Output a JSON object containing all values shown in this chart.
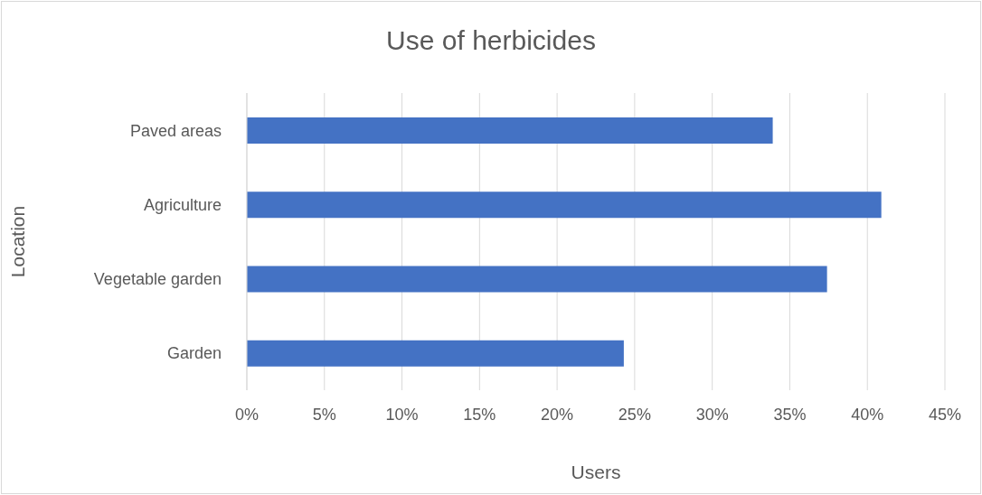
{
  "chart_data": {
    "type": "bar",
    "orientation": "horizontal",
    "title": "Use of herbicides",
    "xlabel": "Users",
    "ylabel": "Location",
    "categories": [
      "Paved areas",
      "Agriculture",
      "Vegetable garden",
      "Garden"
    ],
    "values": [
      33.9,
      40.9,
      37.4,
      24.3
    ],
    "color": "#4472c4",
    "xlim": [
      0,
      45
    ],
    "xticks": [
      {
        "value": 0,
        "label": "0%"
      },
      {
        "value": 5,
        "label": "5%"
      },
      {
        "value": 10,
        "label": "10%"
      },
      {
        "value": 15,
        "label": "15%"
      },
      {
        "value": 20,
        "label": "20%"
      },
      {
        "value": 25,
        "label": "25%"
      },
      {
        "value": 30,
        "label": "30%"
      },
      {
        "value": 35,
        "label": "35%"
      },
      {
        "value": 40,
        "label": "40%"
      },
      {
        "value": 45,
        "label": "45%"
      }
    ],
    "grid": "x",
    "legend": false
  }
}
